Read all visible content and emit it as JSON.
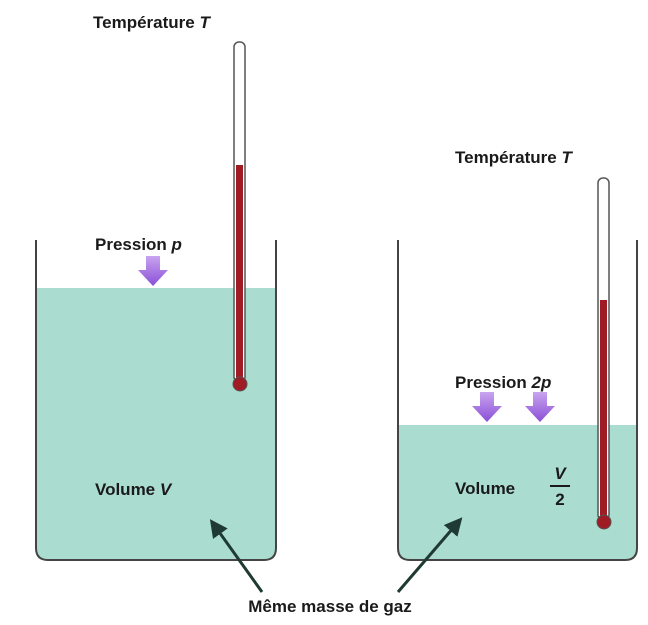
{
  "left": {
    "temperature_label": "Température",
    "temperature_symbol": "T",
    "pressure_label": "Pression",
    "pressure_symbol": "p",
    "volume_label": "Volume",
    "volume_symbol": "V"
  },
  "right": {
    "temperature_label": "Température",
    "temperature_symbol": "T",
    "pressure_label": "Pression",
    "pressure_symbol": "2p",
    "volume_label": "Volume",
    "volume_numerator": "V",
    "volume_denominator": "2"
  },
  "caption": "Même masse de gaz"
}
